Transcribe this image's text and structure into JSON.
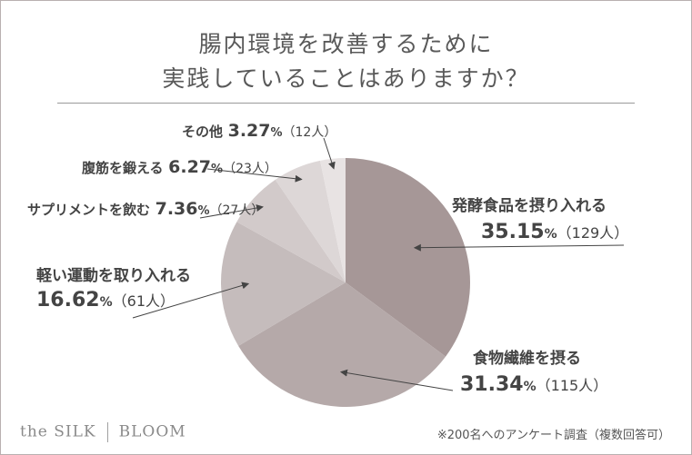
{
  "title": {
    "line1": "腸内環境を改善するために",
    "line2": "実践していることはありますか？"
  },
  "chart_data": {
    "type": "pie",
    "title": "腸内環境を改善するために実践していることはありますか？",
    "slices": [
      {
        "name": "発酵食品を摂り入れる",
        "percent": "35.15",
        "count": "129人",
        "value": 129,
        "color": "#a69797"
      },
      {
        "name": "食物繊維を摂る",
        "percent": "31.34",
        "count": "115人",
        "value": 115,
        "color": "#b5a9a9"
      },
      {
        "name": "軽い運動を取り入れる",
        "percent": "16.62",
        "count": "61人",
        "value": 61,
        "color": "#c5bcbc"
      },
      {
        "name": "サプリメントを飲む",
        "percent": "7.36",
        "count": "27人",
        "value": 27,
        "color": "#d2caca"
      },
      {
        "name": "腹筋を鍛える",
        "percent": "6.27",
        "count": "23人",
        "value": 23,
        "color": "#ddd7d7"
      },
      {
        "name": "その他",
        "percent": "3.27",
        "count": "12人",
        "value": 12,
        "color": "#e8e3e3"
      }
    ],
    "percent_sign": "%"
  },
  "footer": {
    "logo_left": "the SILK",
    "logo_right": "BLOOM",
    "note": "※200名へのアンケート調査（複数回答可）"
  }
}
